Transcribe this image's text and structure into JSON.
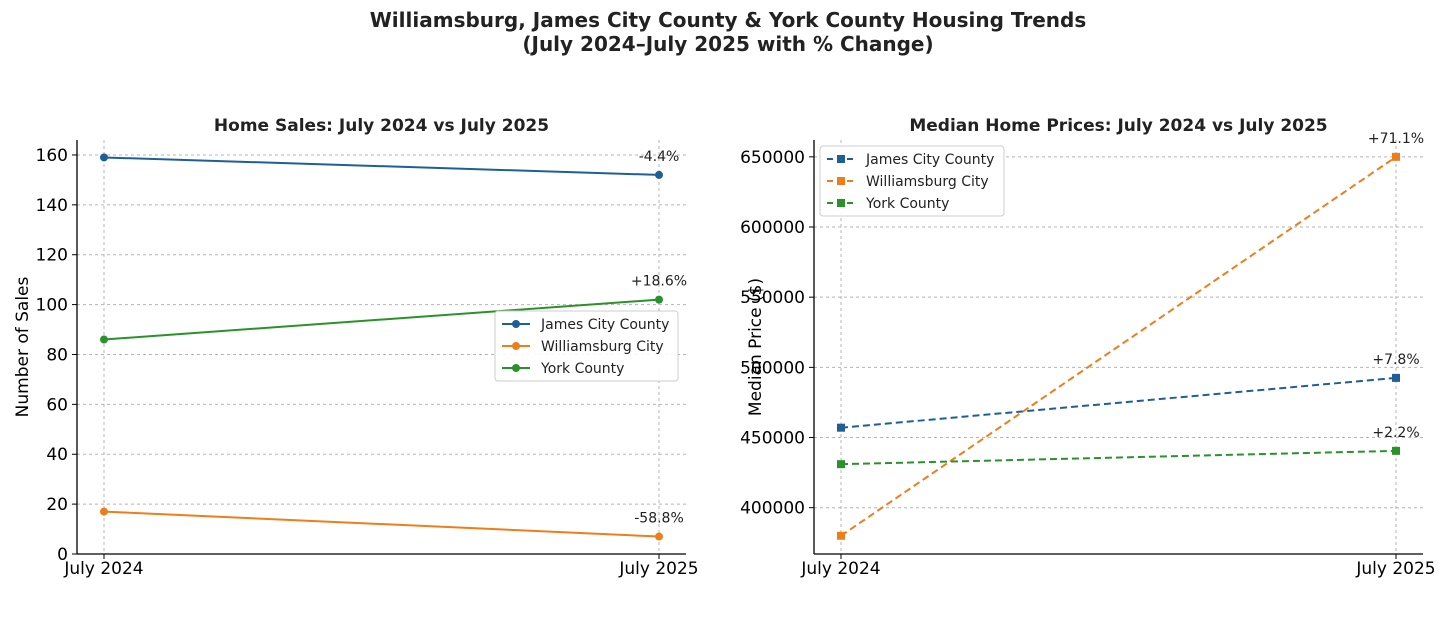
{
  "suptitle": {
    "line1": "Williamsburg, James City County & York County Housing Trends",
    "line2": "(July 2024–July 2025 with % Change)"
  },
  "chart_data": [
    {
      "type": "line",
      "title": "Home Sales: July 2024 vs July 2025",
      "xlabel": "",
      "ylabel": "Number of Sales",
      "categories": [
        "July 2024",
        "July 2025"
      ],
      "ylim": [
        0,
        166
      ],
      "yticks": [
        0,
        20,
        40,
        60,
        80,
        100,
        120,
        140,
        160
      ],
      "grid": true,
      "marker": "circle",
      "linestyle": "solid",
      "legend": {
        "position": "center-right"
      },
      "series": [
        {
          "name": "James City County",
          "values": [
            159,
            152
          ],
          "color": "#1f5f96",
          "change": "-4.4%"
        },
        {
          "name": "Williamsburg City",
          "values": [
            17,
            7
          ],
          "color": "#ee7e1a",
          "change": "-58.8%"
        },
        {
          "name": "York County",
          "values": [
            86,
            102
          ],
          "color": "#2a922a",
          "change": "+18.6%"
        }
      ]
    },
    {
      "type": "line",
      "title": "Median Home Prices: July 2024 vs July 2025",
      "xlabel": "",
      "ylabel": "Median Price ($)",
      "categories": [
        "July 2024",
        "July 2025"
      ],
      "ylim": [
        367000,
        662000
      ],
      "yticks": [
        400000,
        450000,
        500000,
        550000,
        600000,
        650000
      ],
      "grid": true,
      "marker": "square",
      "linestyle": "dashed",
      "legend": {
        "position": "top-left"
      },
      "series": [
        {
          "name": "James City County",
          "values": [
            457000,
            492500
          ],
          "color": "#1f5f96",
          "change": "+7.8%"
        },
        {
          "name": "Williamsburg City",
          "values": [
            380000,
            650000
          ],
          "color": "#ee7e1a",
          "change": "+71.1%"
        },
        {
          "name": "York County",
          "values": [
            431000,
            440500
          ],
          "color": "#2a922a",
          "change": "+2.2%"
        }
      ]
    }
  ]
}
